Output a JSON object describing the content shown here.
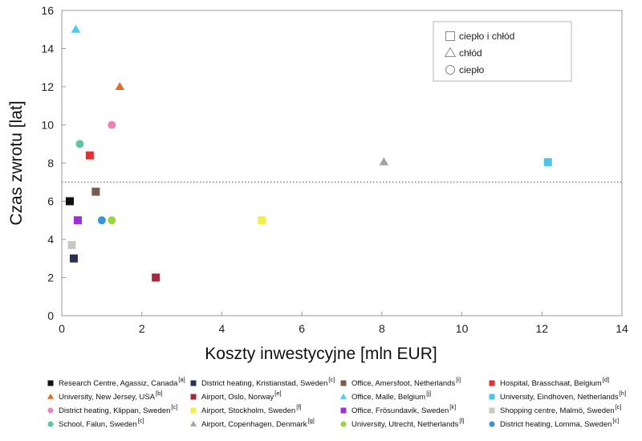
{
  "chart_data": {
    "type": "scatter",
    "xlabel": "Koszty inwestycyjne [mln EUR]",
    "ylabel": "Czas zwrotu [lat]",
    "xlim": [
      0,
      14
    ],
    "ylim": [
      0,
      16
    ],
    "xticks": [
      0,
      2,
      4,
      6,
      8,
      10,
      12,
      14
    ],
    "yticks": [
      0,
      2,
      4,
      6,
      8,
      10,
      12,
      14,
      16
    ],
    "grid": false,
    "reference_line": {
      "y": 7,
      "style": "dotted"
    },
    "type_legend": {
      "placement": "top-right",
      "items": [
        {
          "shape": "square",
          "label": "ciepło i chłód"
        },
        {
          "shape": "triangle",
          "label": "chłód"
        },
        {
          "shape": "circle",
          "label": "ciepło"
        }
      ]
    },
    "series": [
      {
        "name": "Research Centre, Agassiz, Canada",
        "ref": "[a]",
        "shape": "square",
        "color": "#111111",
        "x": 0.2,
        "y": 6.0
      },
      {
        "name": "University, New Jersey, USA",
        "ref": "[b]",
        "shape": "triangle",
        "color": "#e36b27",
        "x": 1.45,
        "y": 12.0
      },
      {
        "name": "District heating, Klippan, Sweden",
        "ref": "[c]",
        "shape": "circle",
        "color": "#ee82b8",
        "x": 1.25,
        "y": 10.0
      },
      {
        "name": "School, Falun, Sweden",
        "ref": "[c]",
        "shape": "circle",
        "color": "#5fc4a4",
        "x": 0.45,
        "y": 9.0
      },
      {
        "name": "District heating, Kristianstad, Sweden",
        "ref": "[c]",
        "shape": "square",
        "color": "#2b2f5b",
        "x": 0.3,
        "y": 3.0
      },
      {
        "name": "Airport, Oslo, Norway",
        "ref": "[e]",
        "shape": "square",
        "color": "#a52a3c",
        "x": 2.35,
        "y": 2.0
      },
      {
        "name": "Airport, Stockholm, Sweden",
        "ref": "[f]",
        "shape": "square",
        "color": "#f2ee4a",
        "x": 5.0,
        "y": 5.0
      },
      {
        "name": "Airport, Copenhagen, Denmark",
        "ref": "[g]",
        "shape": "triangle",
        "color": "#a0a49e",
        "x": 8.05,
        "y": 8.05
      },
      {
        "name": "Office, Amersfoot, Netherlands",
        "ref": "[i]",
        "shape": "square",
        "color": "#7b5a50",
        "x": 0.85,
        "y": 6.5
      },
      {
        "name": "Office, Malle, Belgium",
        "ref": "[j]",
        "shape": "triangle",
        "color": "#52c8ec",
        "x": 0.35,
        "y": 15.0
      },
      {
        "name": "Office, Frösundavik, Sweden",
        "ref": "[k]",
        "shape": "square",
        "color": "#9b30d9",
        "x": 0.4,
        "y": 5.0
      },
      {
        "name": "University, Utrecht, Netherlands",
        "ref": "[l]",
        "shape": "circle",
        "color": "#9ad63a",
        "x": 1.25,
        "y": 5.0
      },
      {
        "name": "Hospital, Brasschaat, Belgium",
        "ref": "[d]",
        "shape": "square",
        "color": "#e62e2e",
        "x": 0.7,
        "y": 8.4
      },
      {
        "name": "University, Eindhoven, Netherlands",
        "ref": "[h]",
        "shape": "square",
        "color": "#4fc3e8",
        "x": 12.15,
        "y": 8.05
      },
      {
        "name": "Shopping centre, Malmö, Sweden",
        "ref": "[c]",
        "shape": "square",
        "color": "#c8c8c4",
        "x": 0.25,
        "y": 3.7
      },
      {
        "name": "District heating, Lomma, Sweden",
        "ref": "[c]",
        "shape": "circle",
        "color": "#3a93d8",
        "x": 1.0,
        "y": 5.0
      }
    ]
  }
}
